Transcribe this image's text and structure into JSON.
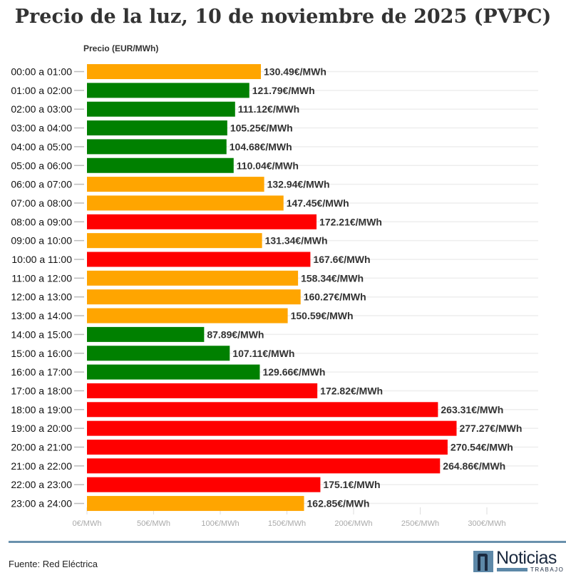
{
  "chart_data": {
    "type": "bar",
    "orientation": "horizontal",
    "title": "Precio de la luz, 10 de noviembre de 2025 (PVPC)",
    "xlabel": "",
    "ylabel": "Precio (EUR/MWh)",
    "xlim": [
      0,
      340
    ],
    "xticks": [
      "0€/MWh",
      "50€/MWh",
      "100€/MWh",
      "150€/MWh",
      "200€/MWh",
      "250€/MWh",
      "300€/MWh"
    ],
    "xtick_values": [
      0,
      50,
      100,
      150,
      200,
      250,
      300
    ],
    "grid": true,
    "categories": [
      "00:00 a 01:00",
      "01:00 a 02:00",
      "02:00 a 03:00",
      "03:00 a 04:00",
      "04:00 a 05:00",
      "05:00 a 06:00",
      "06:00 a 07:00",
      "07:00 a 08:00",
      "08:00 a 09:00",
      "09:00 a 10:00",
      "10:00 a 11:00",
      "11:00 a 12:00",
      "12:00 a 13:00",
      "13:00 a 14:00",
      "14:00 a 15:00",
      "15:00 a 16:00",
      "16:00 a 17:00",
      "17:00 a 18:00",
      "18:00 a 19:00",
      "19:00 a 20:00",
      "20:00 a 21:00",
      "21:00 a 22:00",
      "22:00 a 23:00",
      "23:00 a 24:00"
    ],
    "values": [
      130.49,
      121.79,
      111.12,
      105.25,
      104.68,
      110.04,
      132.94,
      147.45,
      172.21,
      131.34,
      167.6,
      158.34,
      160.27,
      150.59,
      87.89,
      107.11,
      129.66,
      172.82,
      263.31,
      277.27,
      270.54,
      264.86,
      175.1,
      162.85
    ],
    "data_labels": [
      "130.49€/MWh",
      "121.79€/MWh",
      "111.12€/MWh",
      "105.25€/MWh",
      "104.68€/MWh",
      "110.04€/MWh",
      "132.94€/MWh",
      "147.45€/MWh",
      "172.21€/MWh",
      "131.34€/MWh",
      "167.6€/MWh",
      "158.34€/MWh",
      "160.27€/MWh",
      "150.59€/MWh",
      "87.89€/MWh",
      "107.11€/MWh",
      "129.66€/MWh",
      "172.82€/MWh",
      "263.31€/MWh",
      "277.27€/MWh",
      "270.54€/MWh",
      "264.86€/MWh",
      "175.1€/MWh",
      "162.85€/MWh"
    ],
    "bar_colors": [
      "medium",
      "low",
      "low",
      "low",
      "low",
      "low",
      "medium",
      "medium",
      "high",
      "medium",
      "high",
      "medium",
      "medium",
      "medium",
      "low",
      "low",
      "low",
      "high",
      "high",
      "high",
      "high",
      "high",
      "high",
      "medium"
    ],
    "colors": {
      "low": "#008000",
      "medium": "#FFA500",
      "high": "#FF0000"
    }
  },
  "footer": {
    "source": "Fuente: Red Eléctrica",
    "logo_text": "Noticias",
    "logo_sub": "TRABAJO"
  }
}
